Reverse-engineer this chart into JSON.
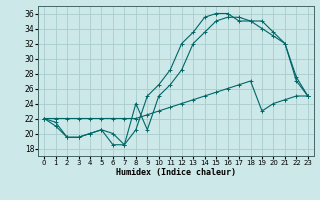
{
  "xlabel": "Humidex (Indice chaleur)",
  "xlim": [
    -0.5,
    23.5
  ],
  "ylim": [
    17,
    37
  ],
  "yticks": [
    18,
    20,
    22,
    24,
    26,
    28,
    30,
    32,
    34,
    36
  ],
  "xticks": [
    0,
    1,
    2,
    3,
    4,
    5,
    6,
    7,
    8,
    9,
    10,
    11,
    12,
    13,
    14,
    15,
    16,
    17,
    18,
    19,
    20,
    21,
    22,
    23
  ],
  "bg_color": "#cce8e8",
  "grid_color": "#aacccc",
  "line_color": "#006666",
  "series1_x": [
    0,
    1,
    2,
    3,
    4,
    5,
    6,
    7,
    8,
    9,
    10,
    11,
    12,
    13,
    14,
    15,
    16,
    17,
    18,
    19,
    20,
    21,
    22,
    23
  ],
  "series1_y": [
    22,
    21,
    19.5,
    19.5,
    20,
    20.5,
    18.5,
    18.5,
    24,
    20.5,
    25,
    26.5,
    28.5,
    32,
    33.5,
    35,
    35.5,
    35.5,
    35,
    35,
    33.5,
    32,
    27.5,
    25
  ],
  "series2_x": [
    0,
    1,
    2,
    3,
    4,
    5,
    6,
    7,
    8,
    9,
    10,
    11,
    12,
    13,
    14,
    15,
    16,
    17,
    18,
    19,
    20,
    21,
    22,
    23
  ],
  "series2_y": [
    22,
    22,
    22,
    22,
    22,
    22,
    22,
    22,
    22,
    22.5,
    23,
    23.5,
    24,
    24.5,
    25,
    25.5,
    26,
    26.5,
    27,
    23,
    24,
    24.5,
    25,
    25
  ],
  "series3_x": [
    0,
    1,
    2,
    3,
    4,
    5,
    6,
    7,
    8,
    9,
    10,
    11,
    12,
    13,
    14,
    15,
    16,
    17,
    18,
    19,
    20,
    21,
    22,
    23
  ],
  "series3_y": [
    22,
    21.5,
    19.5,
    19.5,
    20,
    20.5,
    20,
    18.5,
    20.5,
    25,
    26.5,
    28.5,
    32,
    33.5,
    35.5,
    36,
    36,
    35,
    35,
    34,
    33,
    32,
    27,
    25
  ]
}
